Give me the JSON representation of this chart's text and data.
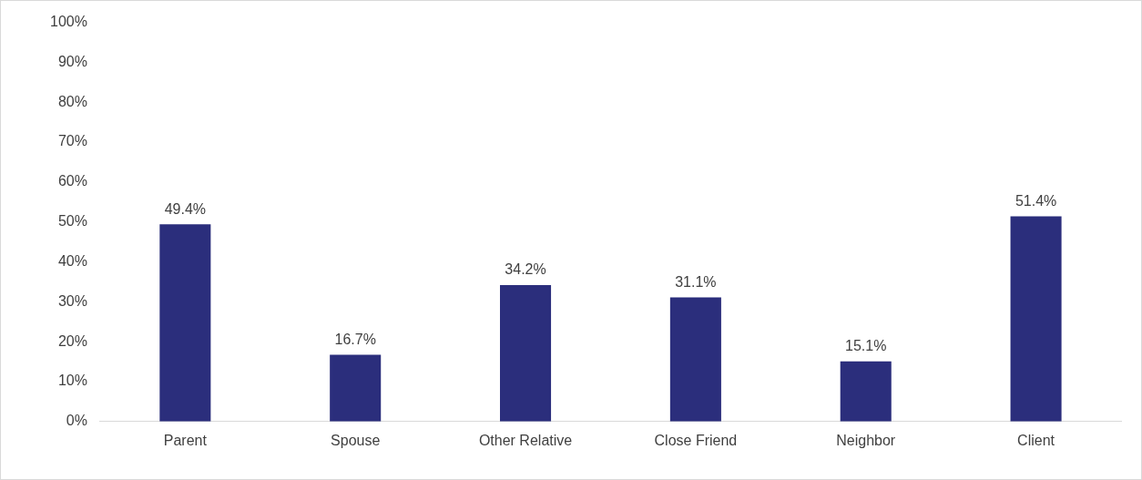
{
  "chart_data": {
    "type": "bar",
    "categories": [
      "Parent",
      "Spouse",
      "Other Relative",
      "Close Friend",
      "Neighbor",
      "Client"
    ],
    "values": [
      49.4,
      16.7,
      34.2,
      31.1,
      15.1,
      51.4
    ],
    "value_labels": [
      "49.4%",
      "16.7%",
      "34.2%",
      "31.1%",
      "15.1%",
      "51.4%"
    ],
    "color": "#2b2e7c",
    "ylim": [
      0,
      100
    ],
    "yticks": [
      {
        "value": 0,
        "label": "0%"
      },
      {
        "value": 10,
        "label": "10%"
      },
      {
        "value": 20,
        "label": "20%"
      },
      {
        "value": 30,
        "label": "30%"
      },
      {
        "value": 40,
        "label": "40%"
      },
      {
        "value": 50,
        "label": "50%"
      },
      {
        "value": 60,
        "label": "60%"
      },
      {
        "value": 70,
        "label": "70%"
      },
      {
        "value": 80,
        "label": "80%"
      },
      {
        "value": 90,
        "label": "90%"
      },
      {
        "value": 100,
        "label": "100%"
      }
    ],
    "grid": false,
    "legend": false
  }
}
